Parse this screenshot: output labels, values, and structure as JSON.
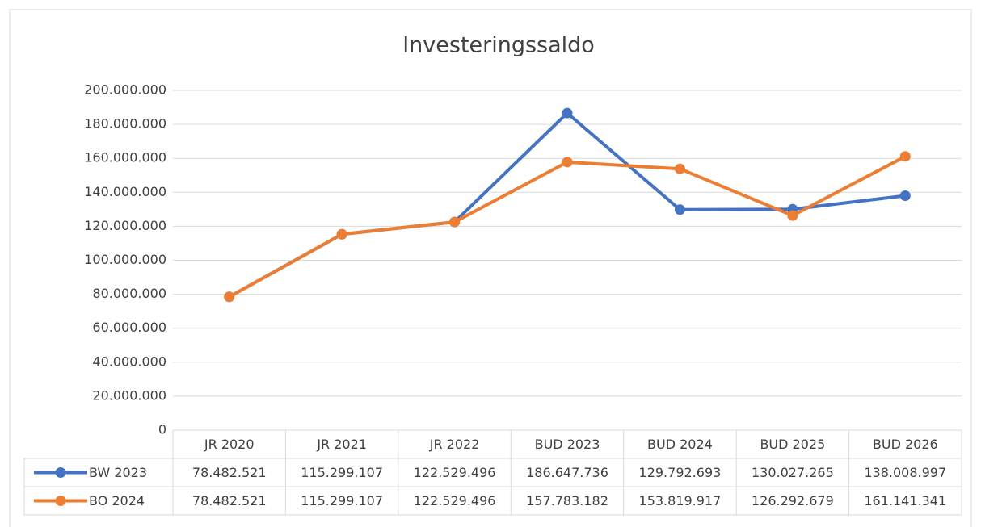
{
  "chart_data": {
    "type": "line",
    "title": "Investeringssaldo",
    "categories": [
      "JR 2020",
      "JR 2021",
      "JR 2022",
      "BUD 2023",
      "BUD 2024",
      "BUD 2025",
      "BUD 2026"
    ],
    "series": [
      {
        "name": "BW 2023",
        "color": "#4472c4",
        "values": [
          78482521,
          115299107,
          122529496,
          186647736,
          129792693,
          130027265,
          138008997
        ],
        "value_labels": [
          "78.482.521",
          "115.299.107",
          "122.529.496",
          "186.647.736",
          "129.792.693",
          "130.027.265",
          "138.008.997"
        ]
      },
      {
        "name": "BO 2024",
        "color": "#ed7d31",
        "values": [
          78482521,
          115299107,
          122529496,
          157783182,
          153819917,
          126292679,
          161141341
        ],
        "value_labels": [
          "78.482.521",
          "115.299.107",
          "122.529.496",
          "157.783.182",
          "153.819.917",
          "126.292.679",
          "161.141.341"
        ]
      }
    ],
    "ylim": [
      0,
      200000000
    ],
    "yticks": [
      0,
      {
        "value": 20000000,
        "label": "20.000.000"
      },
      {
        "value": 40000000,
        "label": "40.000.000"
      },
      {
        "value": 60000000,
        "label": "60.000.000"
      },
      {
        "value": 80000000,
        "label": "80.000.000"
      },
      {
        "value": 100000000,
        "label": "100.000.000"
      },
      {
        "value": 120000000,
        "label": "120.000.000"
      },
      {
        "value": 140000000,
        "label": "140.000.000"
      },
      {
        "value": 160000000,
        "label": "160.000.000"
      },
      {
        "value": 180000000,
        "label": "180.000.000"
      },
      {
        "value": 200000000,
        "label": "200.000.000"
      }
    ],
    "grid": true,
    "legend": "table"
  }
}
